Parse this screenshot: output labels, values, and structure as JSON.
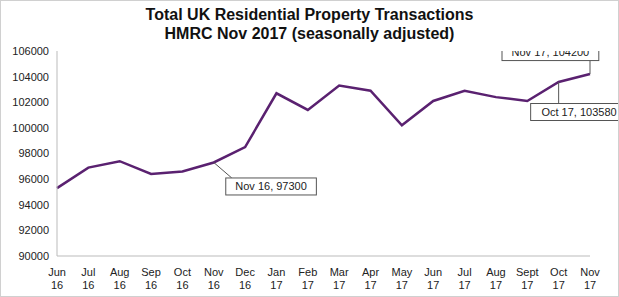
{
  "chart_data": {
    "type": "line",
    "title": "Total UK Residential Property Transactions",
    "subtitle": "HMRC Nov 2017 (seasonally adjusted)",
    "categories": [
      "Jun 16",
      "Jul 16",
      "Aug 16",
      "Sep 16",
      "Oct 16",
      "Nov 16",
      "Dec 16",
      "Jan 17",
      "Feb 17",
      "Mar 17",
      "Apr 17",
      "May 17",
      "Jun 17",
      "Jul 17",
      "Aug 17",
      "Sept 17",
      "Oct 17",
      "Nov 17"
    ],
    "values": [
      95300,
      96900,
      97400,
      96400,
      96600,
      97300,
      98500,
      102700,
      101400,
      103300,
      102900,
      100200,
      102100,
      102900,
      102400,
      102100,
      103580,
      104200
    ],
    "color": "#5a2170",
    "ylim": [
      90000,
      106000
    ],
    "yticks": [
      90000,
      92000,
      94000,
      96000,
      98000,
      100000,
      102000,
      104000,
      106000
    ],
    "grid": false,
    "annotations": [
      {
        "category": "Nov 16",
        "text": "Nov 16, 97300"
      },
      {
        "category": "Oct 17",
        "text": "Oct 17, 103580"
      },
      {
        "category": "Nov 17",
        "text": "Nov 17, 104200"
      }
    ]
  }
}
